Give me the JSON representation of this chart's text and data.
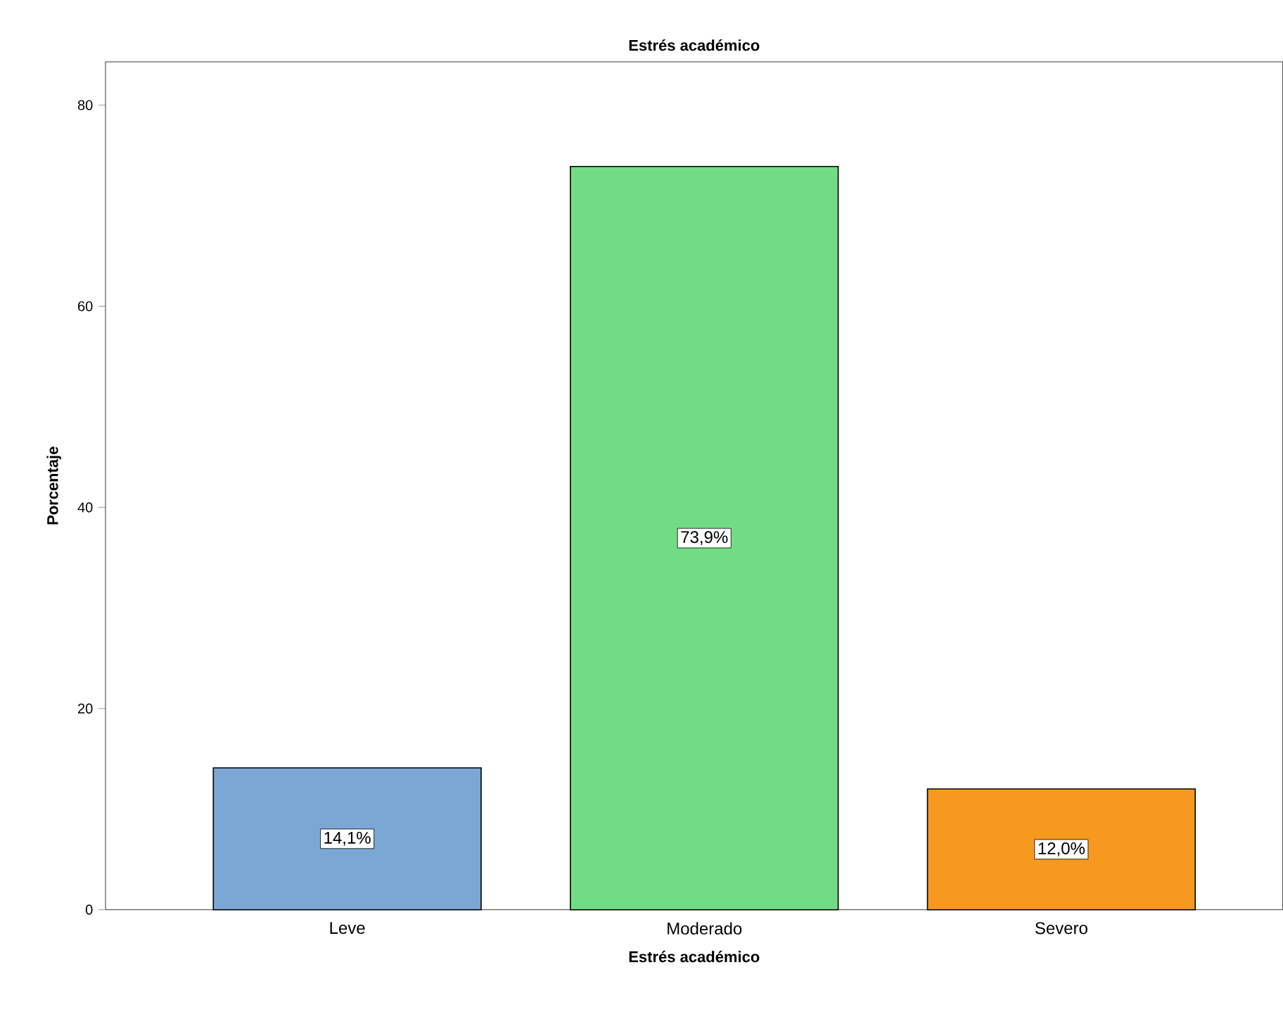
{
  "chart_data": {
    "type": "bar",
    "title": "Estrés académico",
    "xlabel": "Estrés académico",
    "ylabel": "Porcentaje",
    "categories": [
      "Leve",
      "Moderado",
      "Severo"
    ],
    "values": [
      14.1,
      73.9,
      12.0
    ],
    "colors": [
      "#7ba7d5",
      "#72dc84",
      "#f7991f"
    ],
    "value_labels": [
      "14,1%",
      "73,9%",
      "12,0%"
    ],
    "ylim": [
      0,
      84.3
    ],
    "yticks": [
      0,
      20,
      40,
      60,
      80
    ],
    "grid": false
  }
}
